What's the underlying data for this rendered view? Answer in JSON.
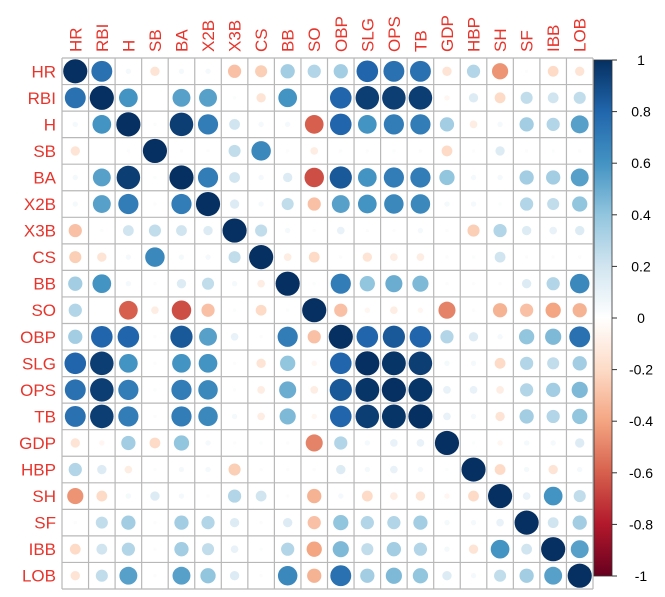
{
  "chart_data": {
    "type": "heatmap",
    "title": "",
    "variables": [
      "HR",
      "RBI",
      "H",
      "SB",
      "BA",
      "X2B",
      "X3B",
      "CS",
      "BB",
      "SO",
      "OBP",
      "SLG",
      "OPS",
      "TB",
      "GDP",
      "HBP",
      "SH",
      "SF",
      "IBB",
      "LOB"
    ],
    "matrix": [
      [
        1.0,
        0.75,
        0.05,
        -0.15,
        0.05,
        0.05,
        -0.3,
        -0.25,
        0.35,
        0.3,
        0.35,
        0.8,
        0.75,
        0.75,
        -0.15,
        0.3,
        -0.45,
        0.02,
        -0.2,
        -0.15
      ],
      [
        0.75,
        1.0,
        0.6,
        0.0,
        0.55,
        0.55,
        0.02,
        -0.15,
        0.6,
        0.0,
        0.8,
        0.95,
        0.95,
        0.95,
        -0.05,
        0.15,
        -0.2,
        0.25,
        0.2,
        0.25
      ],
      [
        0.05,
        0.6,
        1.0,
        0.02,
        0.95,
        0.7,
        0.2,
        0.05,
        0.05,
        -0.6,
        0.8,
        0.6,
        0.7,
        0.7,
        0.35,
        -0.1,
        0.05,
        0.35,
        0.3,
        0.55
      ],
      [
        -0.15,
        0.0,
        0.02,
        1.0,
        0.02,
        0.02,
        0.25,
        0.65,
        0.02,
        -0.1,
        0.02,
        0.02,
        0.02,
        0.02,
        -0.2,
        0.02,
        0.15,
        0.02,
        0.02,
        0.02
      ],
      [
        0.05,
        0.55,
        0.95,
        0.02,
        1.0,
        0.7,
        0.2,
        0.05,
        0.15,
        -0.65,
        0.85,
        0.6,
        0.7,
        0.7,
        0.4,
        0.05,
        0.05,
        0.35,
        0.35,
        0.55
      ],
      [
        0.05,
        0.55,
        0.7,
        0.02,
        0.7,
        1.0,
        0.15,
        0.05,
        0.25,
        -0.3,
        0.55,
        0.6,
        0.65,
        0.65,
        0.05,
        0.05,
        0.02,
        0.3,
        0.25,
        0.4
      ],
      [
        -0.3,
        0.02,
        0.2,
        0.25,
        0.2,
        0.15,
        1.0,
        0.25,
        0.05,
        0.02,
        0.1,
        0.02,
        0.02,
        0.05,
        0.02,
        -0.25,
        0.3,
        0.15,
        0.1,
        0.15
      ],
      [
        -0.25,
        -0.15,
        0.05,
        0.65,
        0.05,
        0.05,
        0.25,
        1.0,
        -0.1,
        -0.2,
        0.02,
        -0.15,
        -0.1,
        -0.1,
        0.02,
        0.02,
        0.2,
        0.02,
        0.02,
        0.02
      ],
      [
        0.35,
        0.6,
        0.05,
        0.02,
        0.15,
        0.25,
        0.05,
        -0.1,
        1.0,
        0.02,
        0.7,
        0.4,
        0.5,
        0.45,
        0.02,
        0.02,
        0.02,
        0.15,
        0.3,
        0.65
      ],
      [
        0.3,
        0.0,
        -0.6,
        -0.1,
        -0.65,
        -0.3,
        0.02,
        -0.2,
        0.02,
        1.0,
        -0.3,
        -0.05,
        -0.1,
        -0.05,
        -0.5,
        0.02,
        -0.35,
        -0.3,
        -0.4,
        -0.35
      ],
      [
        0.35,
        0.8,
        0.8,
        0.02,
        0.85,
        0.55,
        0.1,
        0.02,
        0.7,
        -0.3,
        1.0,
        0.8,
        0.85,
        0.8,
        0.3,
        0.15,
        0.05,
        0.4,
        0.45,
        0.75
      ],
      [
        0.8,
        0.95,
        0.6,
        0.02,
        0.6,
        0.6,
        0.02,
        -0.15,
        0.4,
        -0.05,
        0.8,
        1.0,
        0.98,
        0.95,
        0.05,
        0.05,
        -0.2,
        0.3,
        0.25,
        0.35
      ],
      [
        0.75,
        0.95,
        0.7,
        0.02,
        0.7,
        0.65,
        0.02,
        -0.1,
        0.5,
        -0.1,
        0.85,
        0.98,
        1.0,
        0.98,
        0.1,
        0.1,
        -0.1,
        0.3,
        0.35,
        0.45
      ],
      [
        0.75,
        0.95,
        0.7,
        0.02,
        0.7,
        0.65,
        0.05,
        -0.1,
        0.45,
        -0.05,
        0.8,
        0.95,
        0.98,
        1.0,
        0.1,
        0.05,
        -0.15,
        0.35,
        0.3,
        0.4
      ],
      [
        -0.15,
        -0.05,
        0.35,
        -0.2,
        0.4,
        0.05,
        0.02,
        0.02,
        0.02,
        -0.5,
        0.3,
        0.05,
        0.1,
        0.1,
        1.0,
        0.02,
        -0.05,
        0.05,
        0.05,
        0.15
      ],
      [
        0.3,
        0.15,
        -0.1,
        0.02,
        0.05,
        0.05,
        -0.25,
        0.02,
        0.02,
        0.02,
        0.15,
        0.05,
        0.1,
        0.05,
        0.02,
        1.0,
        -0.2,
        0.05,
        -0.15,
        0.05
      ],
      [
        -0.45,
        -0.2,
        0.05,
        0.15,
        0.05,
        0.02,
        0.3,
        0.2,
        0.02,
        -0.35,
        0.05,
        -0.2,
        -0.1,
        -0.15,
        -0.05,
        -0.2,
        1.0,
        0.1,
        0.6,
        0.25
      ],
      [
        0.02,
        0.25,
        0.35,
        0.02,
        0.35,
        0.3,
        0.15,
        0.02,
        0.15,
        -0.3,
        0.4,
        0.3,
        0.3,
        0.35,
        0.05,
        0.05,
        0.1,
        1.0,
        0.2,
        0.35
      ],
      [
        -0.2,
        0.2,
        0.3,
        0.02,
        0.35,
        0.25,
        0.1,
        0.02,
        0.3,
        -0.4,
        0.45,
        0.25,
        0.35,
        0.3,
        0.05,
        -0.15,
        0.6,
        0.2,
        1.0,
        0.55
      ],
      [
        -0.15,
        0.25,
        0.55,
        0.02,
        0.55,
        0.4,
        0.15,
        0.02,
        0.65,
        -0.35,
        0.75,
        0.35,
        0.45,
        0.4,
        0.15,
        0.05,
        0.25,
        0.35,
        0.55,
        1.0
      ]
    ],
    "color_scale": {
      "min": -1,
      "max": 1,
      "ticks": [
        "1",
        "0.8",
        "0.6",
        "0.4",
        "0.2",
        "0",
        "-0.2",
        "-0.4",
        "-0.6",
        "-0.8",
        "-1"
      ],
      "colors": [
        "#67001f",
        "#b2182b",
        "#d6604d",
        "#f4a582",
        "#fddbc7",
        "#ffffff",
        "#d1e5f0",
        "#92c5de",
        "#4393c3",
        "#2166ac",
        "#053061"
      ]
    },
    "label_color": "#e8342b",
    "grid_color": "#b8b8b8",
    "legend_position": "right"
  }
}
